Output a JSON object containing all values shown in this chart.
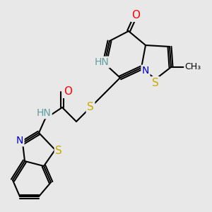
{
  "background_color": "#e8e8e8",
  "figure_size": [
    3.0,
    3.0
  ],
  "dpi": 100,
  "bond_color": "#000000",
  "bond_lw": 1.5,
  "atom_bg": "#e8e8e8",
  "colors": {
    "O": "#ff0000",
    "N": "#0000cd",
    "HN": "#5f9ea0",
    "S": "#ccaa00",
    "C": "#000000",
    "Me": "#000000"
  }
}
